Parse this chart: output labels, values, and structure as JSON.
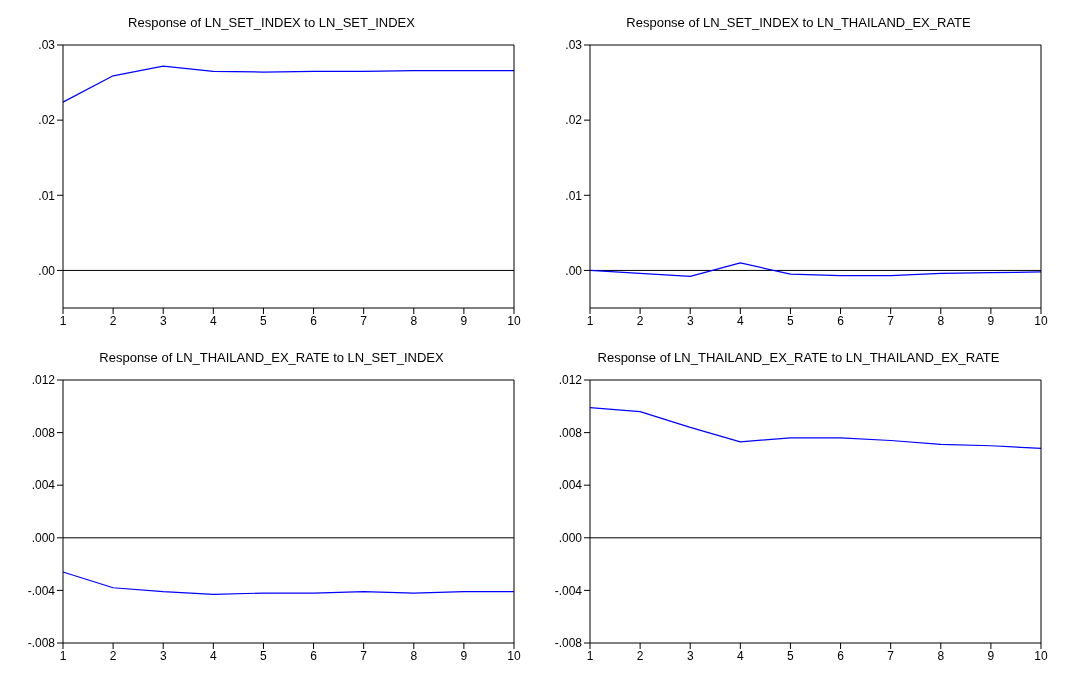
{
  "chart_data": [
    {
      "type": "line",
      "title": "Response of LN_SET_INDEX to LN_SET_INDEX",
      "categories": [
        "1",
        "2",
        "3",
        "4",
        "5",
        "6",
        "7",
        "8",
        "9",
        "10"
      ],
      "series": [
        {
          "color": "#0000ff",
          "values": [
            0.0224,
            0.0259,
            0.0272,
            0.0265,
            0.0264,
            0.0265,
            0.0265,
            0.0266,
            0.0266,
            0.0266
          ]
        }
      ],
      "ylim": [
        -0.005,
        0.03
      ],
      "yticks": [
        {
          "value": 0,
          "label": ".00"
        },
        {
          "value": 0.01,
          "label": ".01"
        },
        {
          "value": 0.02,
          "label": ".02"
        },
        {
          "value": 0.03,
          "label": ".03"
        }
      ],
      "ref_lines": [
        {
          "axis": "y",
          "value": 0,
          "color": "#000000"
        }
      ],
      "grid": false,
      "legend": false
    },
    {
      "type": "line",
      "title": "Response of LN_SET_INDEX to LN_THAILAND_EX_RATE",
      "categories": [
        "1",
        "2",
        "3",
        "4",
        "5",
        "6",
        "7",
        "8",
        "9",
        "10"
      ],
      "series": [
        {
          "color": "#0000ff",
          "values": [
            0.0,
            -0.0004,
            -0.0008,
            0.001,
            -0.0005,
            -0.0007,
            -0.0007,
            -0.0004,
            -0.0003,
            -0.0002
          ]
        }
      ],
      "ylim": [
        -0.005,
        0.03
      ],
      "yticks": [
        {
          "value": 0,
          "label": ".00"
        },
        {
          "value": 0.01,
          "label": ".01"
        },
        {
          "value": 0.02,
          "label": ".02"
        },
        {
          "value": 0.03,
          "label": ".03"
        }
      ],
      "ref_lines": [
        {
          "axis": "y",
          "value": 0,
          "color": "#000000"
        }
      ],
      "grid": false,
      "legend": false
    },
    {
      "type": "line",
      "title": "Response of LN_THAILAND_EX_RATE to LN_SET_INDEX",
      "categories": [
        "1",
        "2",
        "3",
        "4",
        "5",
        "6",
        "7",
        "8",
        "9",
        "10"
      ],
      "series": [
        {
          "color": "#0000ff",
          "values": [
            -0.0026,
            -0.0038,
            -0.0041,
            -0.0043,
            -0.0042,
            -0.0042,
            -0.0041,
            -0.0042,
            -0.0041,
            -0.0041
          ]
        }
      ],
      "ylim": [
        -0.008,
        0.012
      ],
      "yticks": [
        {
          "value": -0.008,
          "label": "-.008"
        },
        {
          "value": -0.004,
          "label": "-.004"
        },
        {
          "value": 0,
          "label": ".000"
        },
        {
          "value": 0.004,
          "label": ".004"
        },
        {
          "value": 0.008,
          "label": ".008"
        },
        {
          "value": 0.012,
          "label": ".012"
        }
      ],
      "ref_lines": [
        {
          "axis": "y",
          "value": 0,
          "color": "#000000"
        }
      ],
      "grid": false,
      "legend": false
    },
    {
      "type": "line",
      "title": "Response of LN_THAILAND_EX_RATE to LN_THAILAND_EX_RATE",
      "categories": [
        "1",
        "2",
        "3",
        "4",
        "5",
        "6",
        "7",
        "8",
        "9",
        "10"
      ],
      "series": [
        {
          "color": "#0000ff",
          "values": [
            0.0099,
            0.0096,
            0.0084,
            0.0073,
            0.0076,
            0.0076,
            0.0074,
            0.0071,
            0.007,
            0.0068
          ]
        }
      ],
      "ylim": [
        -0.008,
        0.012
      ],
      "yticks": [
        {
          "value": -0.008,
          "label": "-.008"
        },
        {
          "value": -0.004,
          "label": "-.004"
        },
        {
          "value": 0,
          "label": ".000"
        },
        {
          "value": 0.004,
          "label": ".004"
        },
        {
          "value": 0.008,
          "label": ".008"
        },
        {
          "value": 0.012,
          "label": ".012"
        }
      ],
      "ref_lines": [
        {
          "axis": "y",
          "value": 0,
          "color": "#000000"
        }
      ],
      "grid": false,
      "legend": false
    }
  ]
}
